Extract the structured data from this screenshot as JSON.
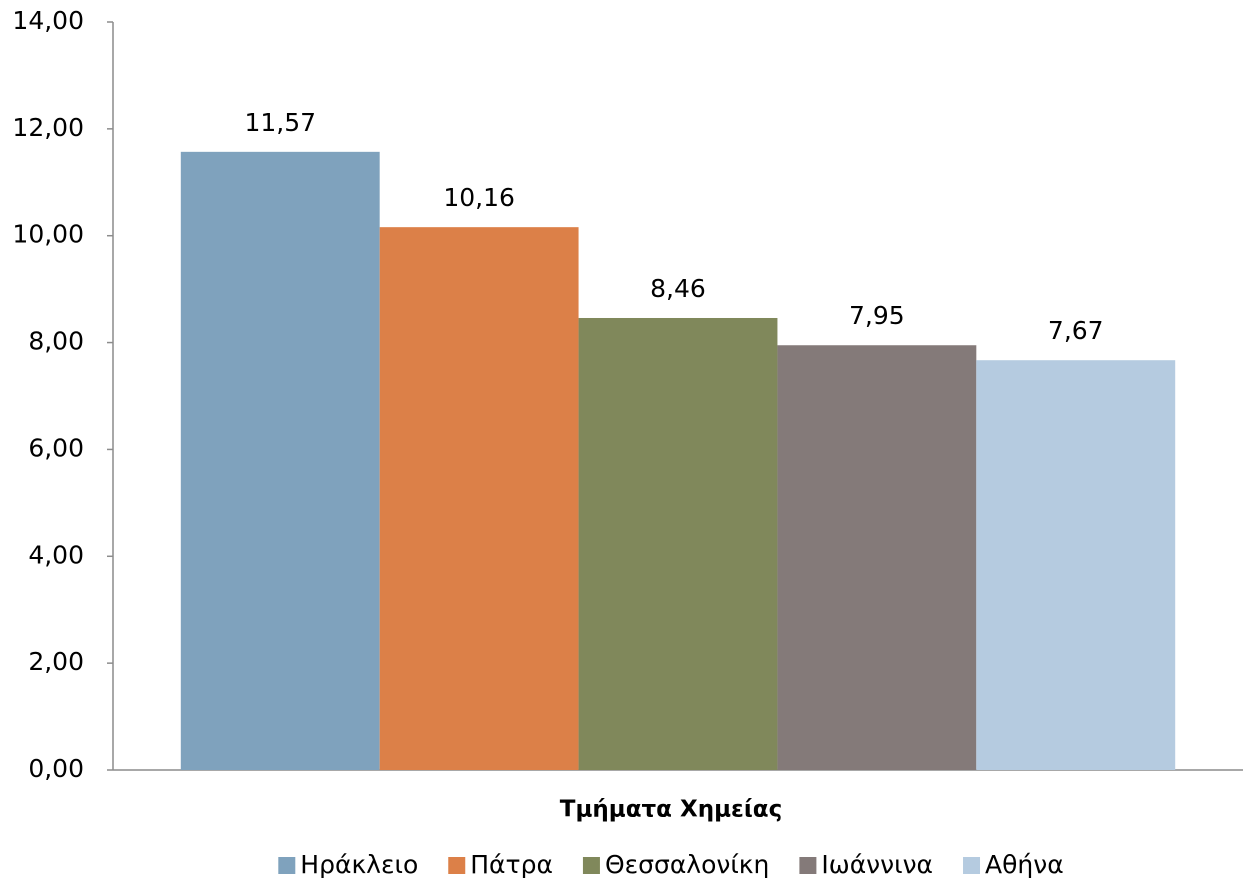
{
  "chart_data": {
    "type": "bar",
    "categories": [
      "Τμήματα Χημείας"
    ],
    "series": [
      {
        "name": "Ηράκλειο",
        "color": "#7fa2bd",
        "values": [
          11.57
        ],
        "value_labels": [
          "11,57"
        ]
      },
      {
        "name": "Πάτρα",
        "color": "#dc8048",
        "values": [
          10.16
        ],
        "value_labels": [
          "10,16"
        ]
      },
      {
        "name": "Θεσσαλονίκη",
        "color": "#80885b",
        "values": [
          8.46
        ],
        "value_labels": [
          "8,46"
        ]
      },
      {
        "name": "Ιωάννινα",
        "color": "#847a79",
        "values": [
          7.95
        ],
        "value_labels": [
          "7,95"
        ]
      },
      {
        "name": "Αθήνα",
        "color": "#b5cbe0",
        "values": [
          7.67
        ],
        "value_labels": [
          "7,67"
        ]
      }
    ],
    "ylim": [
      0,
      14
    ],
    "yticks": [
      {
        "value": 0,
        "label": "0,00"
      },
      {
        "value": 2,
        "label": "2,00"
      },
      {
        "value": 4,
        "label": "4,00"
      },
      {
        "value": 6,
        "label": "6,00"
      },
      {
        "value": 8,
        "label": "8,00"
      },
      {
        "value": 10,
        "label": "10,00"
      },
      {
        "value": 12,
        "label": "12,00"
      },
      {
        "value": 14,
        "label": "14,00"
      }
    ],
    "legend": "bottom"
  }
}
